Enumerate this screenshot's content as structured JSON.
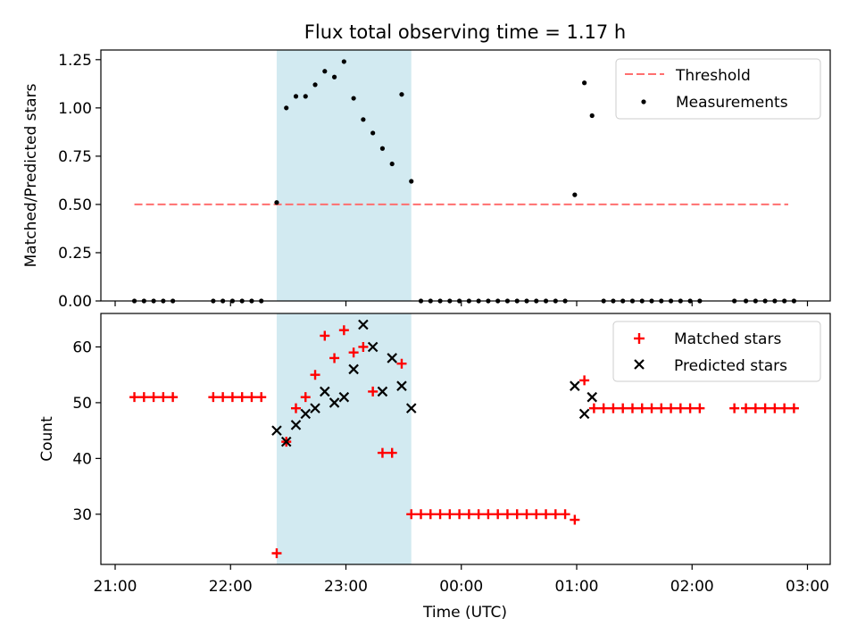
{
  "chart_data": [
    {
      "type": "scatter",
      "title": "Flux total observing time = 1.17 h",
      "ylabel": "Matched/Predicted stars",
      "xlabel": "",
      "ylim": [
        0,
        1.3
      ],
      "yticks": [
        "0.00",
        "0.25",
        "0.50",
        "0.75",
        "1.00",
        "1.25"
      ],
      "legend_position": "top-right",
      "shaded_region": [
        "22:24",
        "23:34"
      ],
      "shaded_color": "#add8e6",
      "threshold": {
        "name": "Threshold",
        "value": 0.5,
        "x_range": [
          "21:10",
          "02:50"
        ],
        "color": "#ff6f6f",
        "style": "dashed"
      },
      "series": [
        {
          "name": "Measurements",
          "marker": "dot",
          "color": "#000000",
          "points": [
            [
              "21:10",
              0
            ],
            [
              "21:15",
              0
            ],
            [
              "21:20",
              0
            ],
            [
              "21:25",
              0
            ],
            [
              "21:30",
              0
            ],
            [
              "21:51",
              0
            ],
            [
              "21:56",
              0
            ],
            [
              "22:01",
              0
            ],
            [
              "22:06",
              0
            ],
            [
              "22:11",
              0
            ],
            [
              "22:16",
              0
            ],
            [
              "22:24",
              0.51
            ],
            [
              "22:29",
              1.0
            ],
            [
              "22:34",
              1.06
            ],
            [
              "22:39",
              1.06
            ],
            [
              "22:44",
              1.12
            ],
            [
              "22:49",
              1.19
            ],
            [
              "22:54",
              1.16
            ],
            [
              "22:59",
              1.24
            ],
            [
              "23:04",
              1.05
            ],
            [
              "23:09",
              0.94
            ],
            [
              "23:14",
              0.87
            ],
            [
              "23:19",
              0.79
            ],
            [
              "23:24",
              0.71
            ],
            [
              "23:29",
              1.07
            ],
            [
              "23:34",
              0.62
            ],
            [
              "23:39",
              0
            ],
            [
              "23:44",
              0
            ],
            [
              "23:49",
              0
            ],
            [
              "23:54",
              0
            ],
            [
              "23:59",
              0
            ],
            [
              "00:04",
              0
            ],
            [
              "00:09",
              0
            ],
            [
              "00:14",
              0
            ],
            [
              "00:19",
              0
            ],
            [
              "00:24",
              0
            ],
            [
              "00:29",
              0
            ],
            [
              "00:34",
              0
            ],
            [
              "00:39",
              0
            ],
            [
              "00:44",
              0
            ],
            [
              "00:49",
              0
            ],
            [
              "00:54",
              0
            ],
            [
              "00:59",
              0.55
            ],
            [
              "01:04",
              1.13
            ],
            [
              "01:08",
              0.96
            ],
            [
              "01:14",
              0
            ],
            [
              "01:19",
              0
            ],
            [
              "01:24",
              0
            ],
            [
              "01:29",
              0
            ],
            [
              "01:34",
              0
            ],
            [
              "01:39",
              0
            ],
            [
              "01:44",
              0
            ],
            [
              "01:49",
              0
            ],
            [
              "01:54",
              0
            ],
            [
              "01:59",
              0
            ],
            [
              "02:04",
              0
            ],
            [
              "02:22",
              0
            ],
            [
              "02:28",
              0
            ],
            [
              "02:33",
              0
            ],
            [
              "02:38",
              0
            ],
            [
              "02:43",
              0
            ],
            [
              "02:48",
              0
            ],
            [
              "02:53",
              0
            ]
          ]
        }
      ]
    },
    {
      "type": "scatter",
      "title": "",
      "ylabel": "Count",
      "xlabel": "Time (UTC)",
      "ylim": [
        21,
        66
      ],
      "yticks": [
        "30",
        "40",
        "50",
        "60"
      ],
      "xticks": [
        "21:00",
        "22:00",
        "23:00",
        "00:00",
        "01:00",
        "02:00",
        "03:00"
      ],
      "legend_position": "top-right",
      "series": [
        {
          "name": "Matched stars",
          "marker": "plus",
          "color": "#ff0000",
          "points": [
            [
              "21:10",
              51
            ],
            [
              "21:15",
              51
            ],
            [
              "21:20",
              51
            ],
            [
              "21:25",
              51
            ],
            [
              "21:30",
              51
            ],
            [
              "21:51",
              51
            ],
            [
              "21:56",
              51
            ],
            [
              "22:01",
              51
            ],
            [
              "22:06",
              51
            ],
            [
              "22:11",
              51
            ],
            [
              "22:16",
              51
            ],
            [
              "22:24",
              23
            ],
            [
              "22:29",
              43
            ],
            [
              "22:34",
              49
            ],
            [
              "22:39",
              51
            ],
            [
              "22:44",
              55
            ],
            [
              "22:49",
              62
            ],
            [
              "22:54",
              58
            ],
            [
              "22:59",
              63
            ],
            [
              "23:04",
              59
            ],
            [
              "23:09",
              60
            ],
            [
              "23:14",
              52
            ],
            [
              "23:19",
              41
            ],
            [
              "23:24",
              41
            ],
            [
              "23:29",
              57
            ],
            [
              "23:34",
              30
            ],
            [
              "23:39",
              30
            ],
            [
              "23:44",
              30
            ],
            [
              "23:49",
              30
            ],
            [
              "23:54",
              30
            ],
            [
              "23:59",
              30
            ],
            [
              "00:04",
              30
            ],
            [
              "00:09",
              30
            ],
            [
              "00:14",
              30
            ],
            [
              "00:19",
              30
            ],
            [
              "00:24",
              30
            ],
            [
              "00:29",
              30
            ],
            [
              "00:34",
              30
            ],
            [
              "00:39",
              30
            ],
            [
              "00:44",
              30
            ],
            [
              "00:49",
              30
            ],
            [
              "00:54",
              30
            ],
            [
              "00:59",
              29
            ],
            [
              "01:04",
              54
            ],
            [
              "01:09",
              49
            ],
            [
              "01:14",
              49
            ],
            [
              "01:19",
              49
            ],
            [
              "01:24",
              49
            ],
            [
              "01:29",
              49
            ],
            [
              "01:34",
              49
            ],
            [
              "01:39",
              49
            ],
            [
              "01:44",
              49
            ],
            [
              "01:49",
              49
            ],
            [
              "01:54",
              49
            ],
            [
              "01:59",
              49
            ],
            [
              "02:04",
              49
            ],
            [
              "02:22",
              49
            ],
            [
              "02:28",
              49
            ],
            [
              "02:33",
              49
            ],
            [
              "02:38",
              49
            ],
            [
              "02:43",
              49
            ],
            [
              "02:48",
              49
            ],
            [
              "02:53",
              49
            ]
          ]
        },
        {
          "name": "Predicted stars",
          "marker": "x",
          "color": "#000000",
          "points": [
            [
              "22:24",
              45
            ],
            [
              "22:29",
              43
            ],
            [
              "22:34",
              46
            ],
            [
              "22:39",
              48
            ],
            [
              "22:44",
              49
            ],
            [
              "22:49",
              52
            ],
            [
              "22:54",
              50
            ],
            [
              "22:59",
              51
            ],
            [
              "23:04",
              56
            ],
            [
              "23:09",
              64
            ],
            [
              "23:14",
              60
            ],
            [
              "23:19",
              52
            ],
            [
              "23:24",
              58
            ],
            [
              "23:29",
              53
            ],
            [
              "23:34",
              49
            ],
            [
              "00:59",
              53
            ],
            [
              "01:04",
              48
            ],
            [
              "01:08",
              51
            ]
          ]
        }
      ]
    }
  ]
}
